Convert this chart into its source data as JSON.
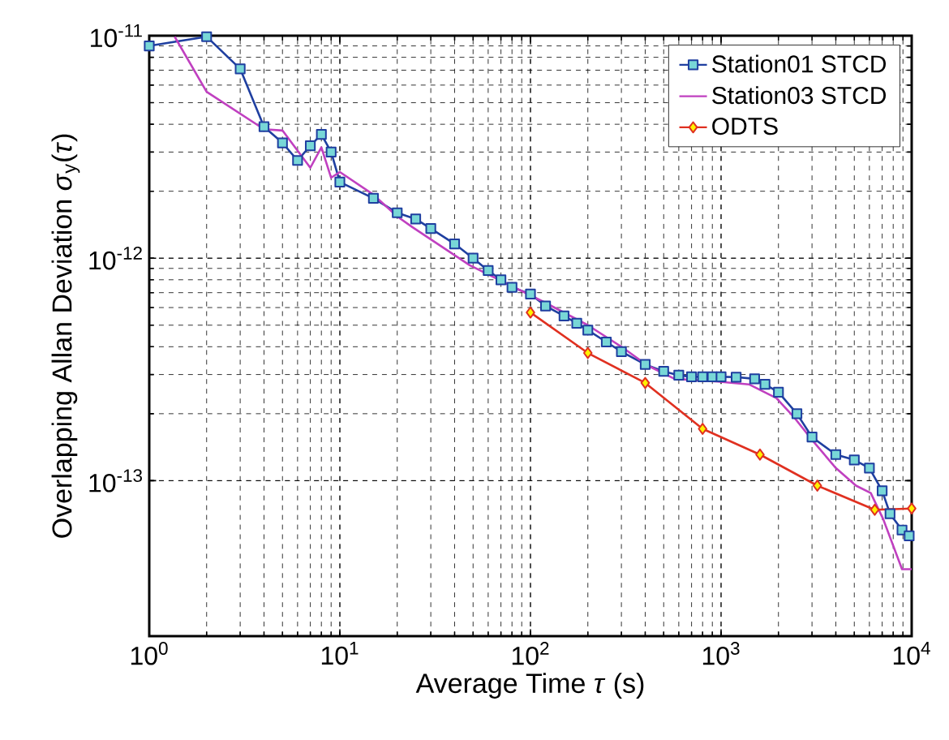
{
  "chart_data": {
    "type": "line",
    "xlabel": "Average Time *τ* (s)",
    "ylabel": "Overlapping Allan Deviation  *σ*$_{y}$(*τ*)",
    "log": "xy",
    "grid": true,
    "legend": "top right",
    "line_style": "solid",
    "xlim": [
      1,
      10000
    ],
    "ylim": [
      2e-14,
      1e-11
    ],
    "xticks": [
      {
        "value": 1,
        "label": "10$^{0}$"
      },
      {
        "value": 10,
        "label": "10$^{1}$"
      },
      {
        "value": 100,
        "label": "10$^{2}$"
      },
      {
        "value": 1000,
        "label": "10$^{3}$"
      },
      {
        "value": 10000,
        "label": "10$^{4}$"
      }
    ],
    "yticks": [
      {
        "value": 1e-13,
        "label": "10$^{-13}$"
      },
      {
        "value": 1e-12,
        "label": "10$^{-12}$"
      },
      {
        "value": 1e-11,
        "label": "10$^{-11}$"
      }
    ],
    "series": [
      {
        "name": "Station01 STCD",
        "color": "#1f3fa0",
        "marker": "square",
        "x": [
          1,
          2,
          3,
          4,
          5,
          6,
          7,
          8,
          9,
          10,
          15,
          20,
          25,
          30,
          40,
          50,
          60,
          70,
          80,
          100,
          120,
          150,
          175,
          200,
          250,
          300,
          400,
          500,
          600,
          700,
          800,
          900,
          1000,
          1200,
          1500,
          1700,
          2000,
          2500,
          3000,
          4000,
          5000,
          6000,
          7000,
          7700,
          8900,
          9700
        ],
        "values": [
          9e-12,
          9.9e-12,
          7.1e-12,
          3.9e-12,
          3.3e-12,
          2.75e-12,
          3.2e-12,
          3.6e-12,
          3e-12,
          2.2e-12,
          1.86e-12,
          1.6e-12,
          1.5e-12,
          1.36e-12,
          1.16e-12,
          1e-12,
          8.8e-13,
          8e-13,
          7.4e-13,
          6.9e-13,
          6.1e-13,
          5.5e-13,
          5.1e-13,
          4.75e-13,
          4.2e-13,
          3.8e-13,
          3.33e-13,
          3.1e-13,
          2.98e-13,
          2.93e-13,
          2.93e-13,
          2.93e-13,
          2.93e-13,
          2.92e-13,
          2.87e-13,
          2.71e-13,
          2.5e-13,
          2e-13,
          1.57e-13,
          1.31e-13,
          1.24e-13,
          1.14e-13,
          9e-14,
          7.1e-14,
          6e-14,
          5.65e-14
        ]
      },
      {
        "name": "Station03 STCD",
        "color": "#c040c0",
        "marker": "none",
        "x": [
          1.36,
          2,
          4,
          5,
          7,
          8,
          9,
          10,
          15,
          20,
          24,
          48,
          120,
          200,
          300,
          410,
          570,
          960,
          1400,
          1950,
          2400,
          3050,
          4000,
          5100,
          6100,
          7100,
          8900,
          10000
        ],
        "values": [
          9.9e-12,
          5.6e-12,
          3.8e-12,
          3.75e-12,
          2.55e-12,
          3.15e-12,
          2.3e-12,
          2.44e-12,
          1.93e-12,
          1.54e-12,
          1.38e-12,
          9.3e-13,
          6.3e-13,
          5e-13,
          4e-13,
          3.3e-13,
          2.87e-13,
          2.79e-13,
          2.71e-13,
          2.35e-13,
          1.94e-13,
          1.5e-13,
          1.14e-13,
          9.5e-14,
          8.8e-14,
          6.7e-14,
          4e-14,
          4e-14
        ]
      },
      {
        "name": "ODTS",
        "color": "#e03020",
        "marker": "diamond",
        "x": [
          100,
          200,
          400,
          800,
          1600,
          3200,
          6400,
          10000
        ],
        "values": [
          5.7e-13,
          3.75e-13,
          2.75e-13,
          1.71e-13,
          1.31e-13,
          9.5e-14,
          7.4e-14,
          7.5e-14
        ]
      }
    ]
  }
}
